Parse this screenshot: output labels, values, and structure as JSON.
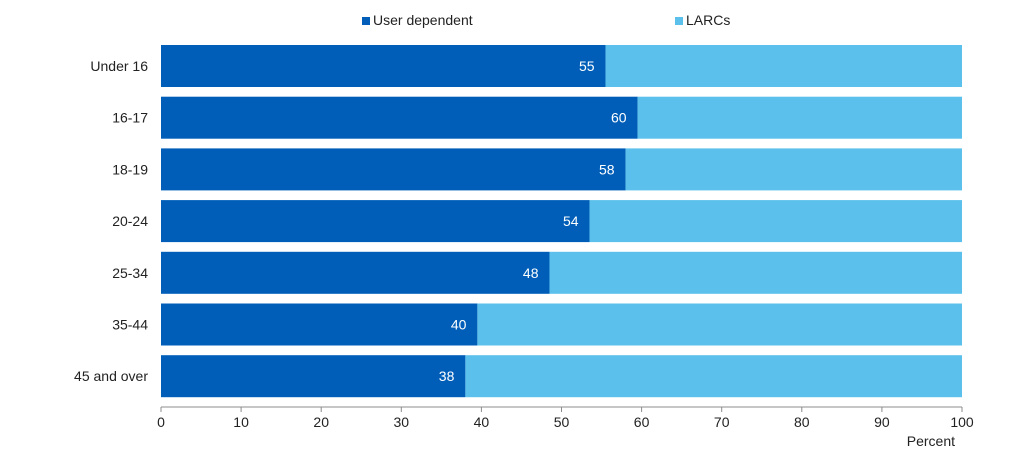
{
  "chart_data": {
    "type": "bar",
    "orientation": "horizontal",
    "stacked": true,
    "categories": [
      "Under 16",
      "16-17",
      "18-19",
      "20-24",
      "25-34",
      "35-44",
      "45 and over"
    ],
    "series": [
      {
        "name": "User dependent",
        "color": "#005EB8",
        "values": [
          55.5,
          59.5,
          58,
          53.5,
          48.5,
          39.5,
          38
        ],
        "data_labels": [
          "55",
          "60",
          "58",
          "54",
          "48",
          "40",
          "38"
        ]
      },
      {
        "name": "LARCs",
        "color": "#5BC0EB",
        "values": [
          44.5,
          40.5,
          42,
          46.5,
          51.5,
          60.5,
          62
        ]
      }
    ],
    "xlabel": "Percent",
    "xlim": [
      0,
      100
    ],
    "xticks": [
      0,
      10,
      20,
      30,
      40,
      50,
      60,
      70,
      80,
      90,
      100
    ],
    "grid": false,
    "legend_position": "top"
  }
}
